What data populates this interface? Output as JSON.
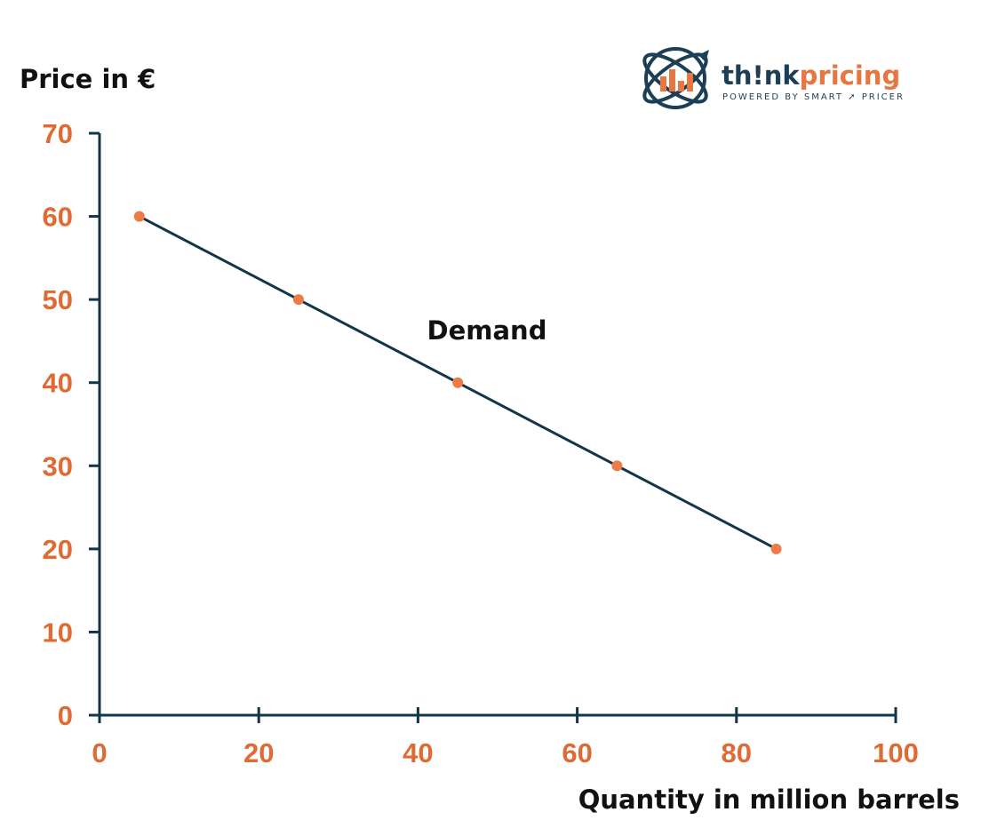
{
  "chart_data": {
    "type": "line",
    "x_label": "Quantity in million barrels",
    "y_label": "Price in €",
    "x_range": [
      0,
      100
    ],
    "y_range": [
      0,
      70
    ],
    "x_ticks": [
      0,
      20,
      40,
      60,
      80,
      100
    ],
    "y_ticks": [
      0,
      10,
      20,
      30,
      40,
      50,
      60,
      70
    ],
    "grid": false,
    "series": [
      {
        "name": "Demand",
        "x": [
          5,
          25,
          45,
          65,
          85
        ],
        "y": [
          60,
          50,
          40,
          30,
          20
        ]
      }
    ]
  },
  "logo": {
    "word_part1": "th!nk",
    "word_part2": "pricing",
    "tagline_part1": "POWERED BY SMART",
    "tagline_part2": "PRICER"
  },
  "colors": {
    "axis": "#123548",
    "line": "#123548",
    "marker": "#ee7a45",
    "tick_label": "#de6a34",
    "logo_dark": "#1c3e56",
    "logo_orange": "#e87640"
  }
}
